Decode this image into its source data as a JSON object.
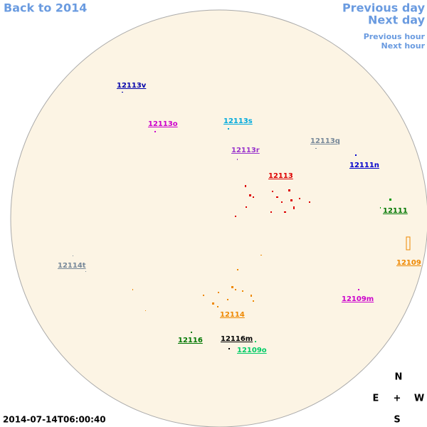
{
  "nav": {
    "back": "Back to 2014",
    "previous_day": "Previous day",
    "next_day": "Next day",
    "previous_hour": "Previous hour",
    "next_hour": "Next hour"
  },
  "regions": [
    "12113v",
    "12113o",
    "12113s",
    "12113q",
    "12113r",
    "12113",
    "12111n",
    "12111",
    "12109",
    "12114t",
    "12109m",
    "12114",
    "12116",
    "12116m",
    "12109o"
  ],
  "compass": {
    "north": "N",
    "east": "E",
    "center": "+",
    "west": "W",
    "south": "S"
  },
  "timestamp": "2014-07-14T06:00:40"
}
